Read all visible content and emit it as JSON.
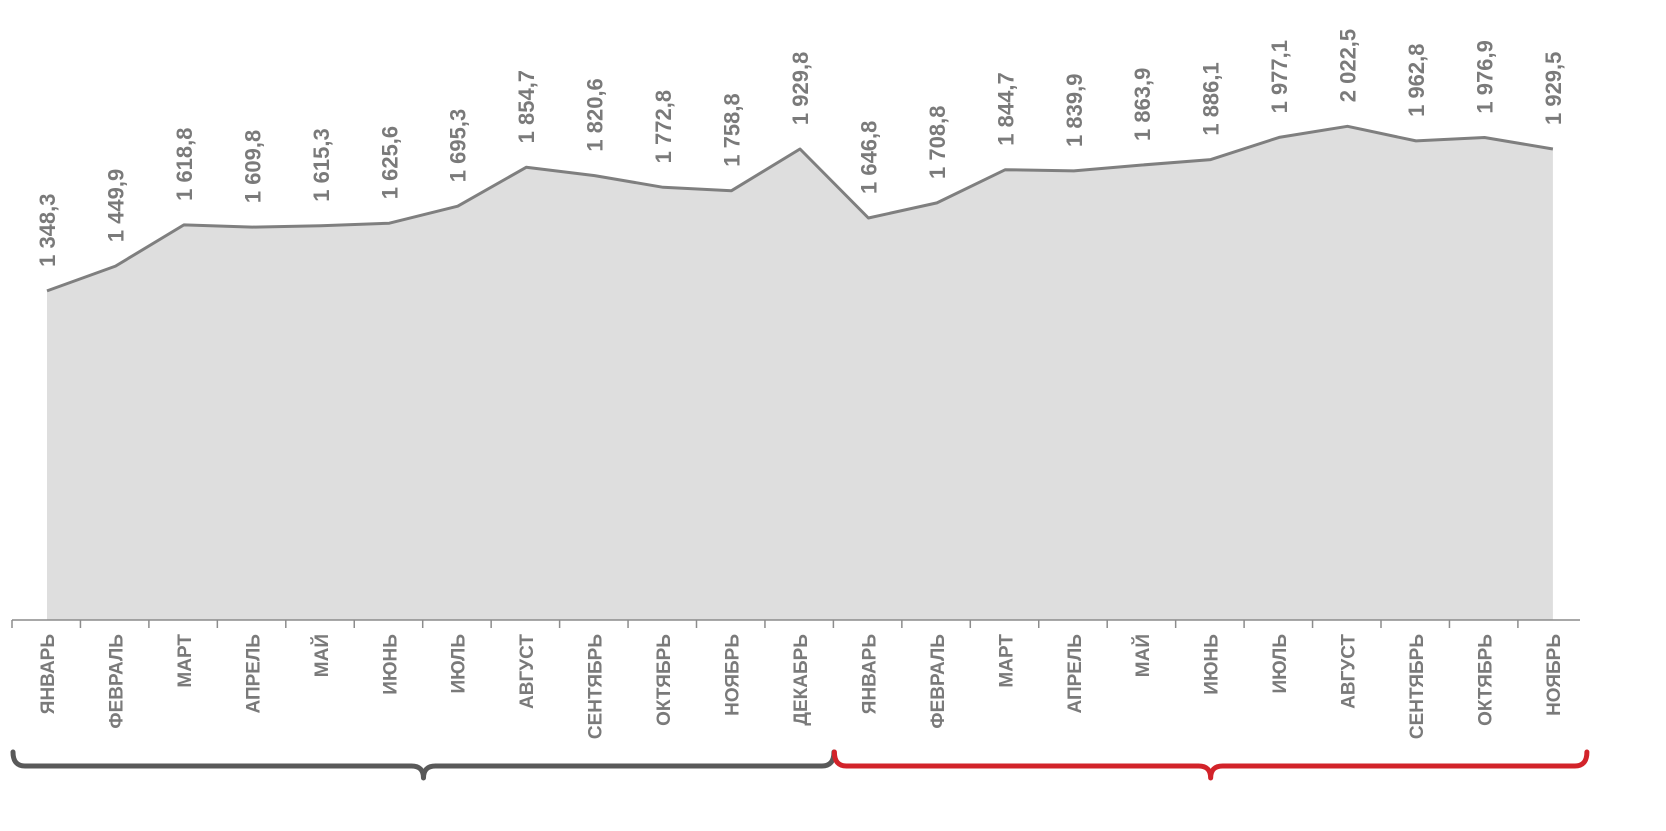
{
  "chart_data": {
    "type": "area",
    "categories": [
      "ЯНВАРЬ",
      "ФЕВРАЛЬ",
      "МАРТ",
      "АПРЕЛЬ",
      "МАЙ",
      "ИЮНЬ",
      "ИЮЛЬ",
      "АВГУСТ",
      "СЕНТЯБРЬ",
      "ОКТЯБРЬ",
      "НОЯБРЬ",
      "ДЕКАБРЬ",
      "ЯНВАРЬ",
      "ФЕВРАЛЬ",
      "МАРТ",
      "АПРЕЛЬ",
      "МАЙ",
      "ИЮНЬ",
      "ИЮЛЬ",
      "АВГУСТ",
      "СЕНТЯБРЬ",
      "ОКТЯБРЬ",
      "НОЯБРЬ"
    ],
    "values": [
      1348.3,
      1449.9,
      1618.8,
      1609.8,
      1615.3,
      1625.6,
      1695.3,
      1854.7,
      1820.6,
      1772.8,
      1758.8,
      1929.8,
      1646.8,
      1708.8,
      1844.7,
      1839.9,
      1863.9,
      1886.1,
      1977.1,
      2022.5,
      1962.8,
      1976.9,
      1929.5
    ],
    "value_labels": [
      "1 348,3",
      "1 449,9",
      "1 618,8",
      "1 609,8",
      "1 615,3",
      "1 625,6",
      "1 695,3",
      "1 854,7",
      "1 820,6",
      "1 772,8",
      "1 758,8",
      "1 929,8",
      "1 646,8",
      "1 708,8",
      "1 844,7",
      "1 839,9",
      "1 863,9",
      "1 886,1",
      "1 977,1",
      "2 022,5",
      "1 962,8",
      "1 976,9",
      "1 929,5"
    ],
    "groups": [
      {
        "start": 0,
        "end": 11,
        "color": "#595959"
      },
      {
        "start": 12,
        "end": 22,
        "color": "#d2232a"
      }
    ],
    "title": "",
    "xlabel": "",
    "ylabel": "",
    "ylim": [
      0,
      2200
    ],
    "grid": false,
    "legend": "none",
    "area_fill": "#dedede",
    "line_color": "#7f7f7f",
    "label_color": "#7a7a7a"
  }
}
